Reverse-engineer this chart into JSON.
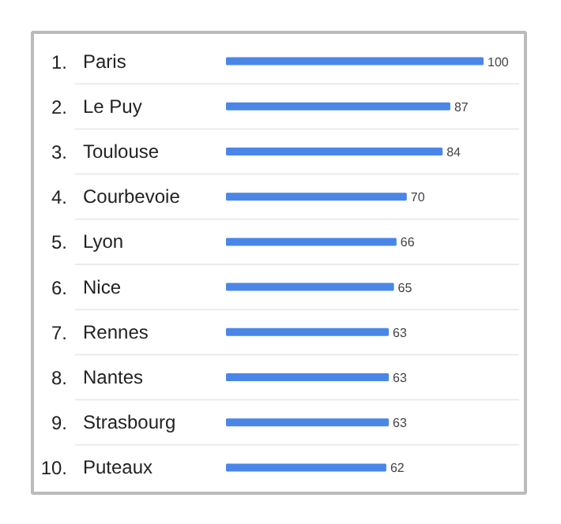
{
  "chart_data": {
    "type": "bar",
    "orientation": "horizontal",
    "categories": [
      "Paris",
      "Le Puy",
      "Toulouse",
      "Courbevoie",
      "Lyon",
      "Nice",
      "Rennes",
      "Nantes",
      "Strasbourg",
      "Puteaux"
    ],
    "values": [
      100,
      87,
      84,
      70,
      66,
      65,
      63,
      63,
      63,
      62
    ],
    "color": "#4a86e8",
    "data_labels": true,
    "annotations": [
      "1.",
      "2.",
      "3.",
      "4.",
      "5.",
      "6.",
      "7.",
      "8.",
      "9.",
      "10."
    ]
  }
}
